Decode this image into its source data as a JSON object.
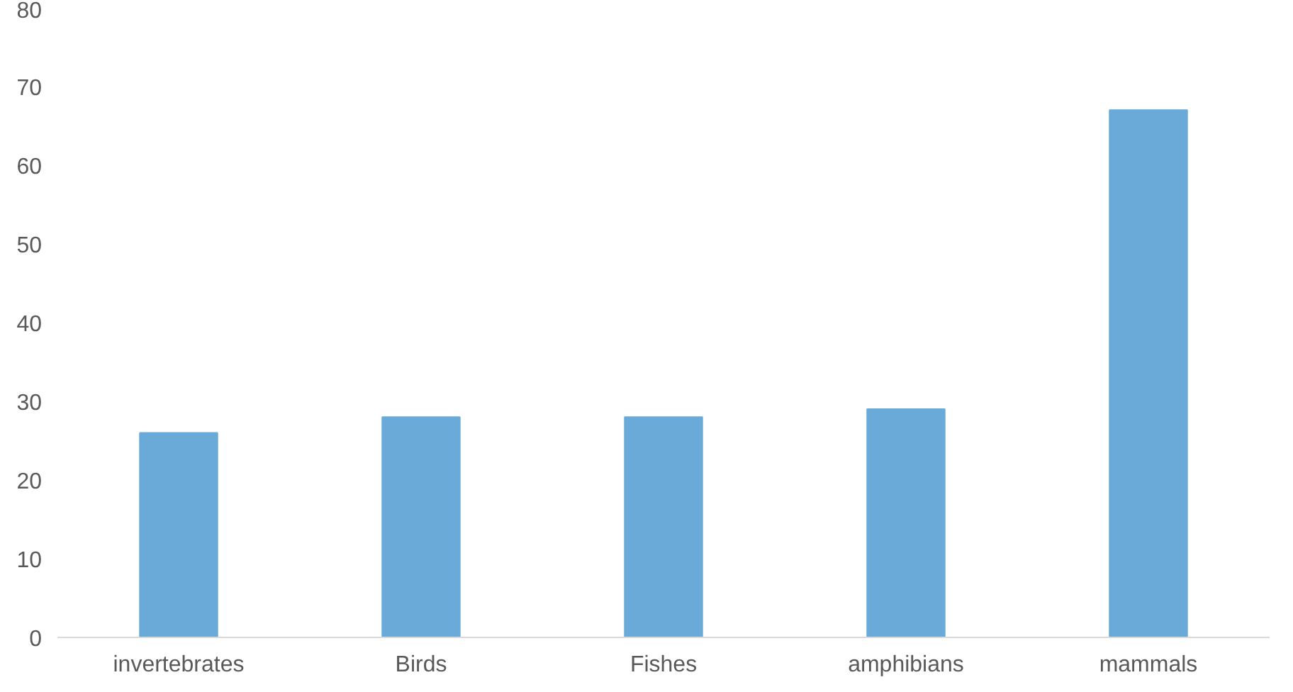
{
  "chart_data": {
    "type": "bar",
    "categories": [
      "invertebrates",
      "Birds",
      "Fishes",
      "amphibians",
      "mammals"
    ],
    "values": [
      26,
      28,
      28,
      29,
      67
    ],
    "color": "#6aaad9",
    "ylim": [
      0,
      80
    ],
    "yticks": [
      0,
      10,
      20,
      30,
      40,
      50,
      60,
      70,
      80
    ],
    "grid": false
  }
}
